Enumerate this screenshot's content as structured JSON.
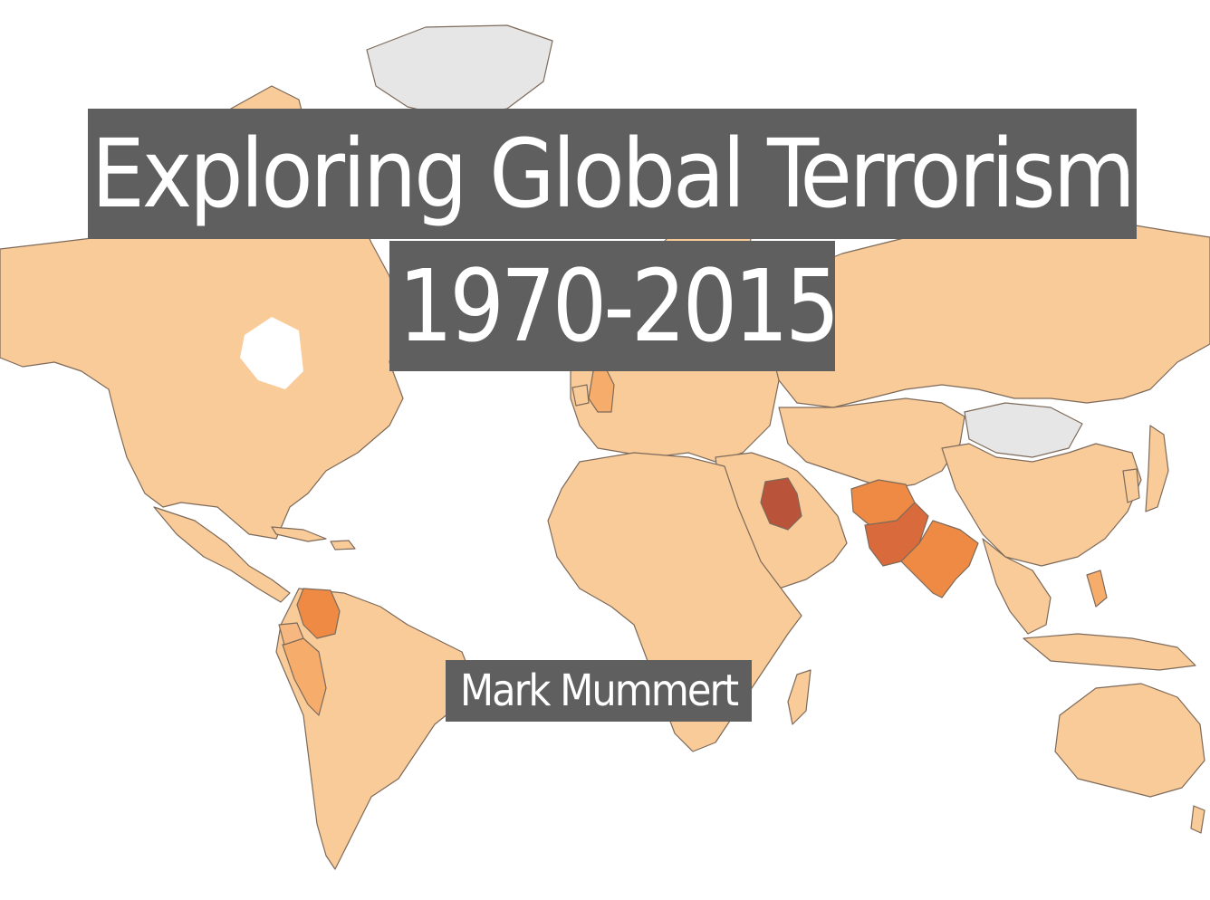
{
  "title": {
    "line1": "Exploring Global Terrorism",
    "line2": "1970-2015"
  },
  "author": "Mark Mummert",
  "colors": {
    "land_base": "#f9cb98",
    "land_light": "#fbd3a6",
    "land_mid": "#f6ad6b",
    "land_high": "#ee8a44",
    "land_highest": "#b9543a",
    "land_nodata": "#e6e6e6",
    "border": "#7d6a5a",
    "title_bg": "#5f5f5f",
    "title_text": "#ffffff"
  },
  "map_regions": [
    {
      "name": "Iraq",
      "level": "highest"
    },
    {
      "name": "Pakistan",
      "level": "high"
    },
    {
      "name": "Afghanistan",
      "level": "high"
    },
    {
      "name": "India",
      "level": "high"
    },
    {
      "name": "Colombia",
      "level": "high"
    },
    {
      "name": "Peru",
      "level": "mid"
    },
    {
      "name": "Philippines",
      "level": "mid"
    },
    {
      "name": "United Kingdom",
      "level": "mid"
    },
    {
      "name": "Mongolia",
      "level": "nodata"
    },
    {
      "name": "Greenland",
      "level": "nodata"
    }
  ]
}
